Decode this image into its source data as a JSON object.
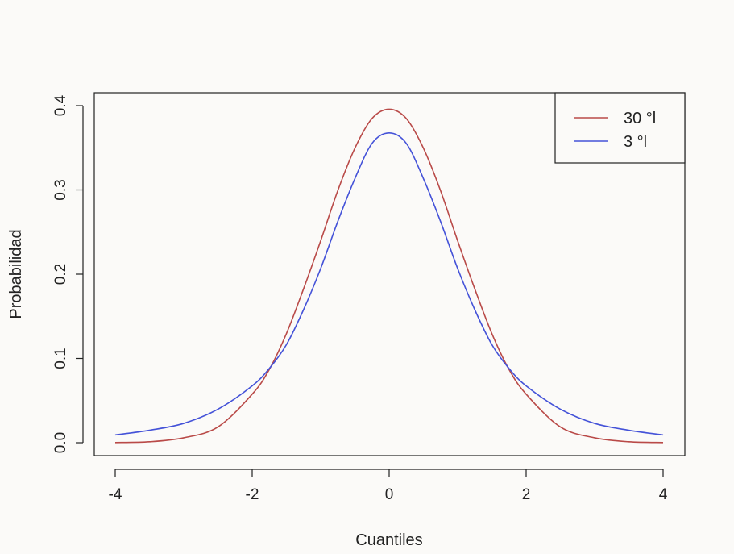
{
  "chart_data": {
    "type": "line",
    "title": "",
    "xlabel": "Cuantiles",
    "ylabel": "Probabilidad",
    "xlim": [
      -4,
      4
    ],
    "ylim": [
      0,
      0.4
    ],
    "x_ticks": [
      -4,
      -2,
      0,
      2,
      4
    ],
    "x_tick_labels": [
      "-4",
      "-2",
      "0",
      "2",
      "4"
    ],
    "y_ticks": [
      0.0,
      0.1,
      0.2,
      0.3,
      0.4
    ],
    "y_tick_labels": [
      "0.0",
      "0.1",
      "0.2",
      "0.3",
      "0.4"
    ],
    "grid": false,
    "legend_position": "top-right",
    "x": [
      -4.0,
      -3.5,
      -3.0,
      -2.5,
      -2.0,
      -1.75,
      -1.5,
      -1.25,
      -1.0,
      -0.75,
      -0.5,
      -0.25,
      0.0,
      0.25,
      0.5,
      0.75,
      1.0,
      1.25,
      1.5,
      1.75,
      2.0,
      2.5,
      3.0,
      3.5,
      4.0
    ],
    "series": [
      {
        "name": "30 °l",
        "color": "#b94a48",
        "values": [
          0.0002,
          0.0011,
          0.0058,
          0.0187,
          0.0576,
          0.087,
          0.1295,
          0.1826,
          0.2396,
          0.2992,
          0.3496,
          0.3848,
          0.3958,
          0.3848,
          0.3496,
          0.2992,
          0.2396,
          0.1826,
          0.1295,
          0.087,
          0.0576,
          0.0187,
          0.0058,
          0.0011,
          0.0002
        ]
      },
      {
        "name": "3 °l",
        "color": "#4452d8",
        "values": [
          0.0092,
          0.0148,
          0.0229,
          0.0398,
          0.0675,
          0.0881,
          0.1164,
          0.1579,
          0.2067,
          0.2626,
          0.3135,
          0.3552,
          0.3676,
          0.3552,
          0.3135,
          0.2626,
          0.2067,
          0.1579,
          0.1164,
          0.0881,
          0.0675,
          0.0398,
          0.0229,
          0.0148,
          0.0092
        ]
      }
    ]
  }
}
